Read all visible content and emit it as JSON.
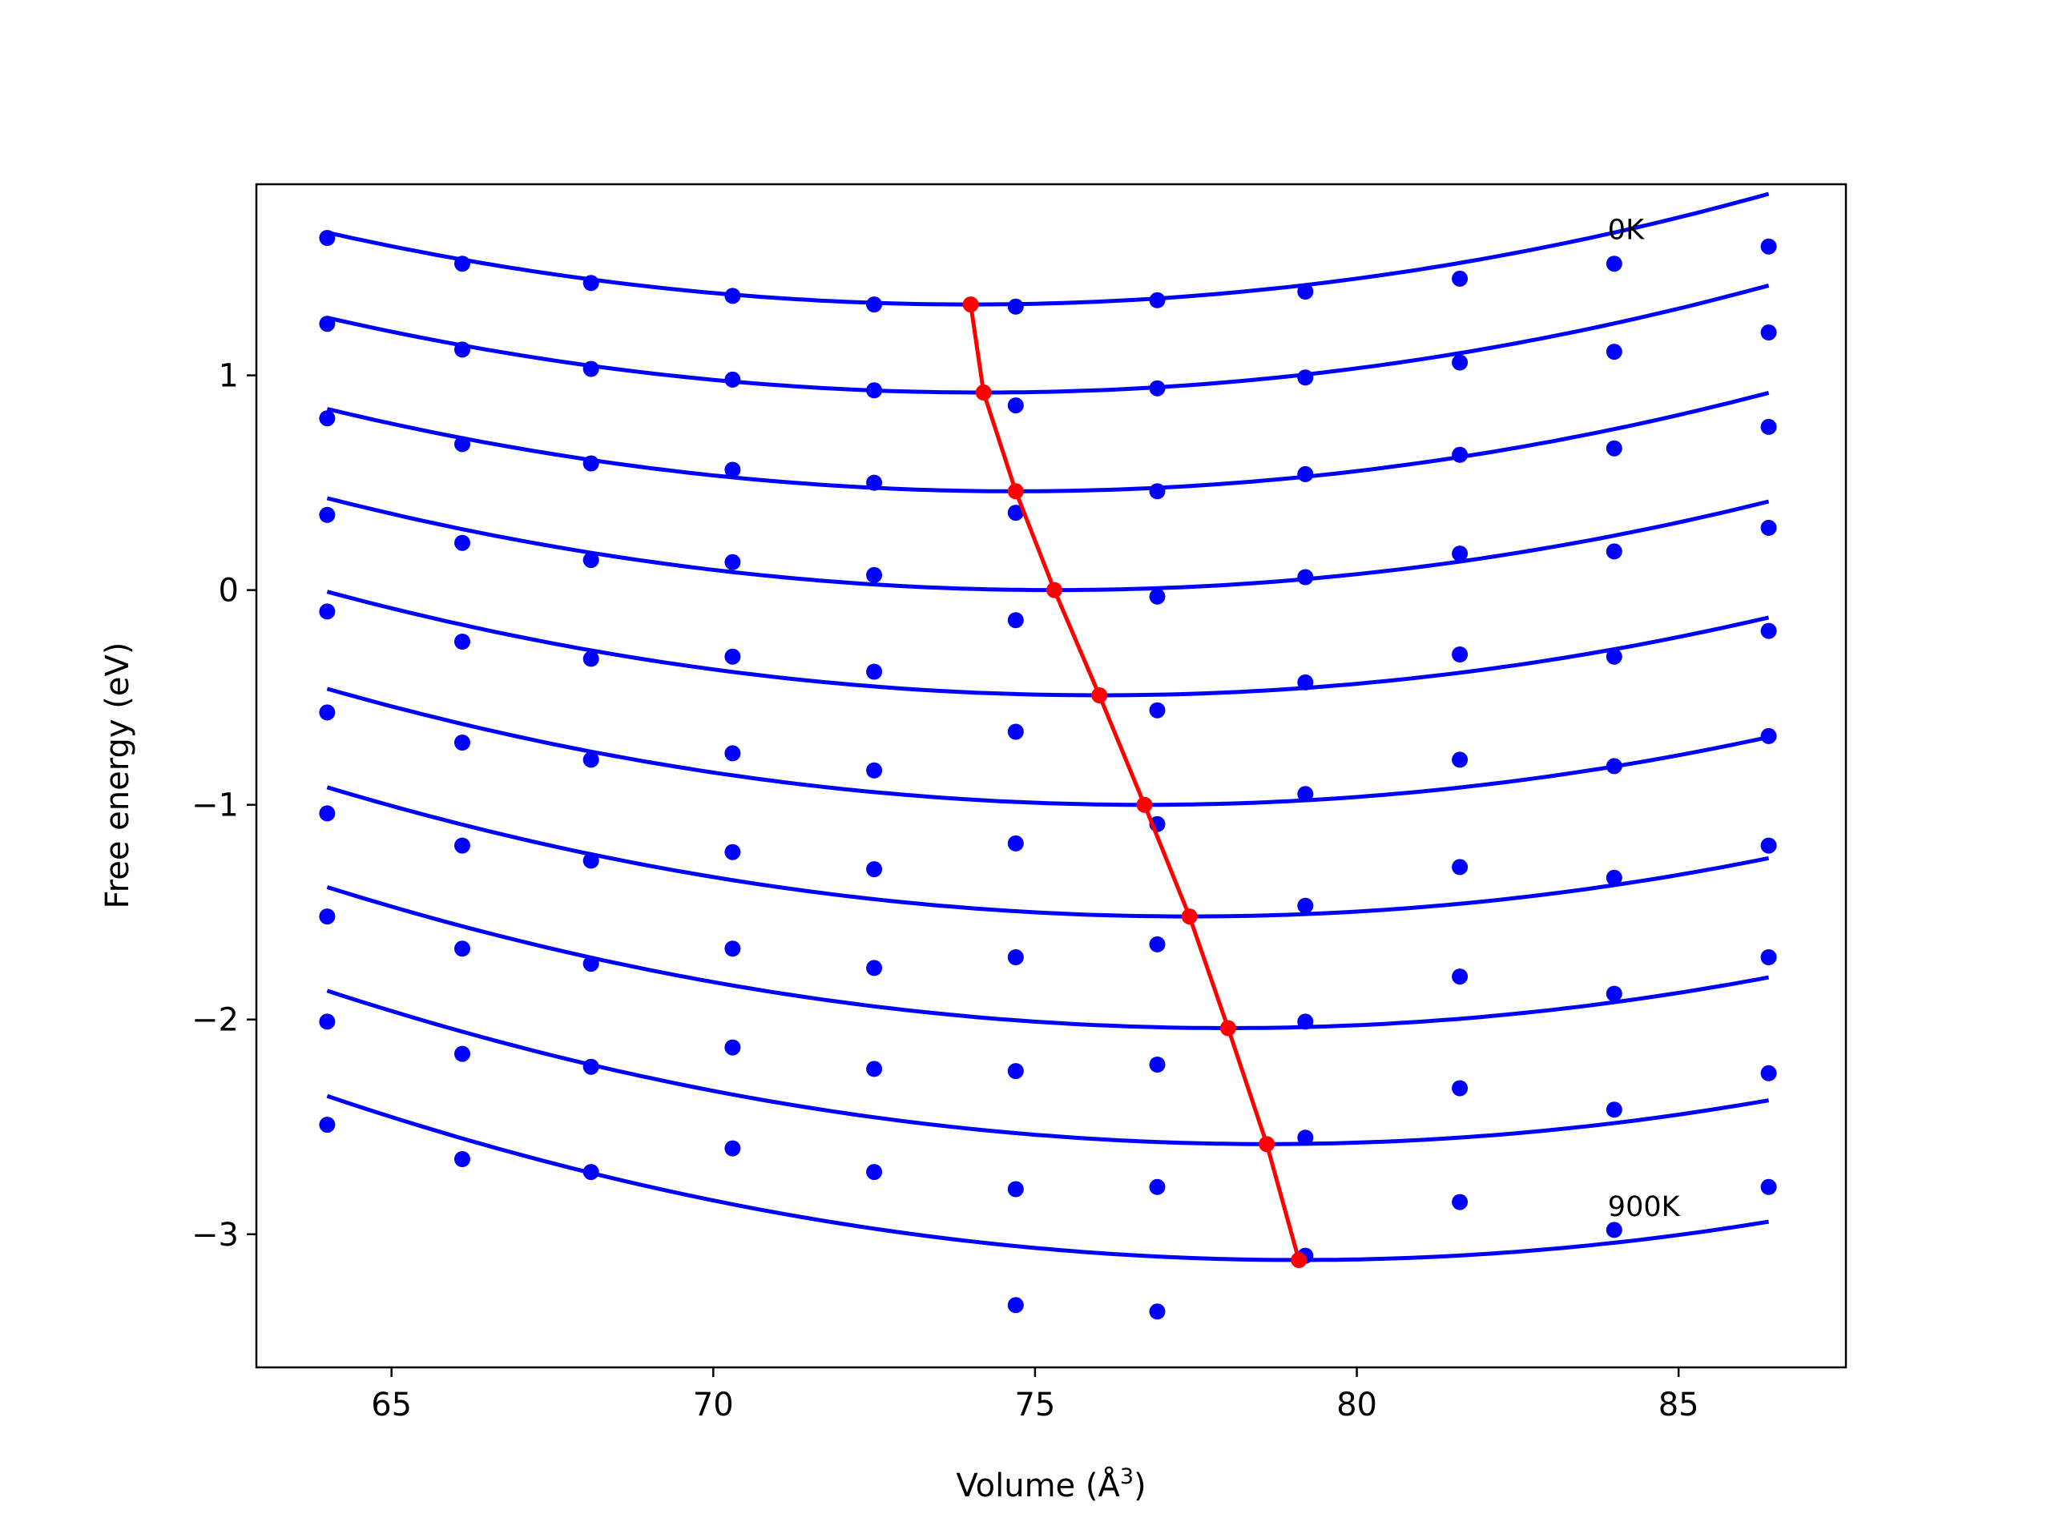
{
  "chart_data": {
    "type": "scatter",
    "xlabel": "Volume (Å",
    "xlabel_sup": "3",
    "xlabel_close": ")",
    "ylabel": "Free energy (eV)",
    "xlim": [
      62.9,
      87.6
    ],
    "ylim": [
      -3.62,
      1.89
    ],
    "xticks": [
      65,
      70,
      75,
      80,
      85
    ],
    "yticks": [
      1,
      0,
      -1,
      -2,
      -3
    ],
    "annotations": [
      {
        "text": "0K",
        "x": 83.9,
        "y": 1.68
      },
      {
        "text": "900K",
        "x": 83.9,
        "y": -2.87
      }
    ],
    "colors": {
      "points": "#0000ff",
      "fits": "#0000ff",
      "minima": "#ff0000"
    },
    "volumes": [
      64.0,
      66.1,
      68.1,
      70.3,
      72.5,
      74.7,
      76.9,
      79.2,
      81.6,
      84.0,
      86.4
    ],
    "series": [
      {
        "points": [
          1.64,
          1.52,
          1.43,
          1.37,
          1.33,
          1.32,
          1.35,
          1.39,
          1.45,
          1.52,
          1.6
        ],
        "fit": {
          "x0": 64.0,
          "x1": 86.4,
          "a": 0.00335,
          "vmin": 74.0,
          "fmin": 1.33
        }
      },
      {
        "points": [
          1.24,
          1.12,
          1.03,
          0.98,
          0.93,
          0.86,
          0.94,
          0.99,
          1.06,
          1.11,
          1.2
        ],
        "fit": {
          "x0": 64.0,
          "x1": 86.4,
          "a": 0.00335,
          "vmin": 74.2,
          "fmin": 0.92
        }
      },
      {
        "points": [
          0.8,
          0.68,
          0.59,
          0.56,
          0.5,
          0.36,
          0.46,
          0.54,
          0.63,
          0.66,
          0.76
        ],
        "fit": {
          "x0": 64.0,
          "x1": 86.4,
          "a": 0.00335,
          "vmin": 74.7,
          "fmin": 0.46
        }
      },
      {
        "points": [
          0.35,
          0.22,
          0.14,
          0.13,
          0.07,
          -0.14,
          -0.03,
          0.06,
          0.17,
          0.18,
          0.29
        ],
        "fit": {
          "x0": 64.0,
          "x1": 86.4,
          "a": 0.00335,
          "vmin": 75.3,
          "fmin": 0.0
        }
      },
      {
        "points": [
          -0.1,
          -0.24,
          -0.32,
          -0.31,
          -0.38,
          -0.66,
          -0.56,
          -0.43,
          -0.3,
          -0.31,
          -0.19
        ],
        "fit": {
          "x0": 64.0,
          "x1": 86.4,
          "a": 0.00335,
          "vmin": 76.0,
          "fmin": -0.49
        }
      },
      {
        "points": [
          -0.57,
          -0.71,
          -0.79,
          -0.76,
          -0.84,
          -1.18,
          -1.09,
          -0.95,
          -0.79,
          -0.82,
          -0.68
        ],
        "fit": {
          "x0": 64.0,
          "x1": 86.4,
          "a": 0.00335,
          "vmin": 76.7,
          "fmin": -1.0
        }
      },
      {
        "points": [
          -1.04,
          -1.19,
          -1.26,
          -1.22,
          -1.3,
          -1.71,
          -1.65,
          -1.47,
          -1.29,
          -1.34,
          -1.19
        ],
        "fit": {
          "x0": 64.0,
          "x1": 86.4,
          "a": 0.00335,
          "vmin": 77.4,
          "fmin": -1.52
        }
      },
      {
        "points": [
          -1.52,
          -1.67,
          -1.74,
          -1.67,
          -1.76,
          -2.24,
          -2.21,
          -2.01,
          -1.8,
          -1.88,
          -1.71
        ],
        "fit": {
          "x0": 64.0,
          "x1": 86.4,
          "a": 0.00335,
          "vmin": 78.0,
          "fmin": -2.04
        }
      },
      {
        "points": [
          -2.01,
          -2.16,
          -2.22,
          -2.13,
          -2.23,
          -2.79,
          -2.78,
          -2.55,
          -2.32,
          -2.42,
          -2.25
        ],
        "fit": {
          "x0": 64.0,
          "x1": 86.4,
          "a": 0.00335,
          "vmin": 78.6,
          "fmin": -2.58
        }
      },
      {
        "points": [
          -2.49,
          -2.65,
          -2.71,
          -2.6,
          -2.71,
          -3.33,
          -3.36,
          -3.1,
          -2.85,
          -2.98,
          -2.78
        ],
        "fit": {
          "x0": 64.0,
          "x1": 86.4,
          "a": 0.00335,
          "vmin": 79.1,
          "fmin": -3.12
        }
      }
    ],
    "minima": {
      "x": [
        74.0,
        74.2,
        74.7,
        75.3,
        76.0,
        76.7,
        77.4,
        78.0,
        78.6,
        79.1
      ],
      "y": [
        1.33,
        0.92,
        0.46,
        0.0,
        -0.49,
        -1.0,
        -1.52,
        -2.04,
        -2.58,
        -3.12
      ]
    }
  }
}
